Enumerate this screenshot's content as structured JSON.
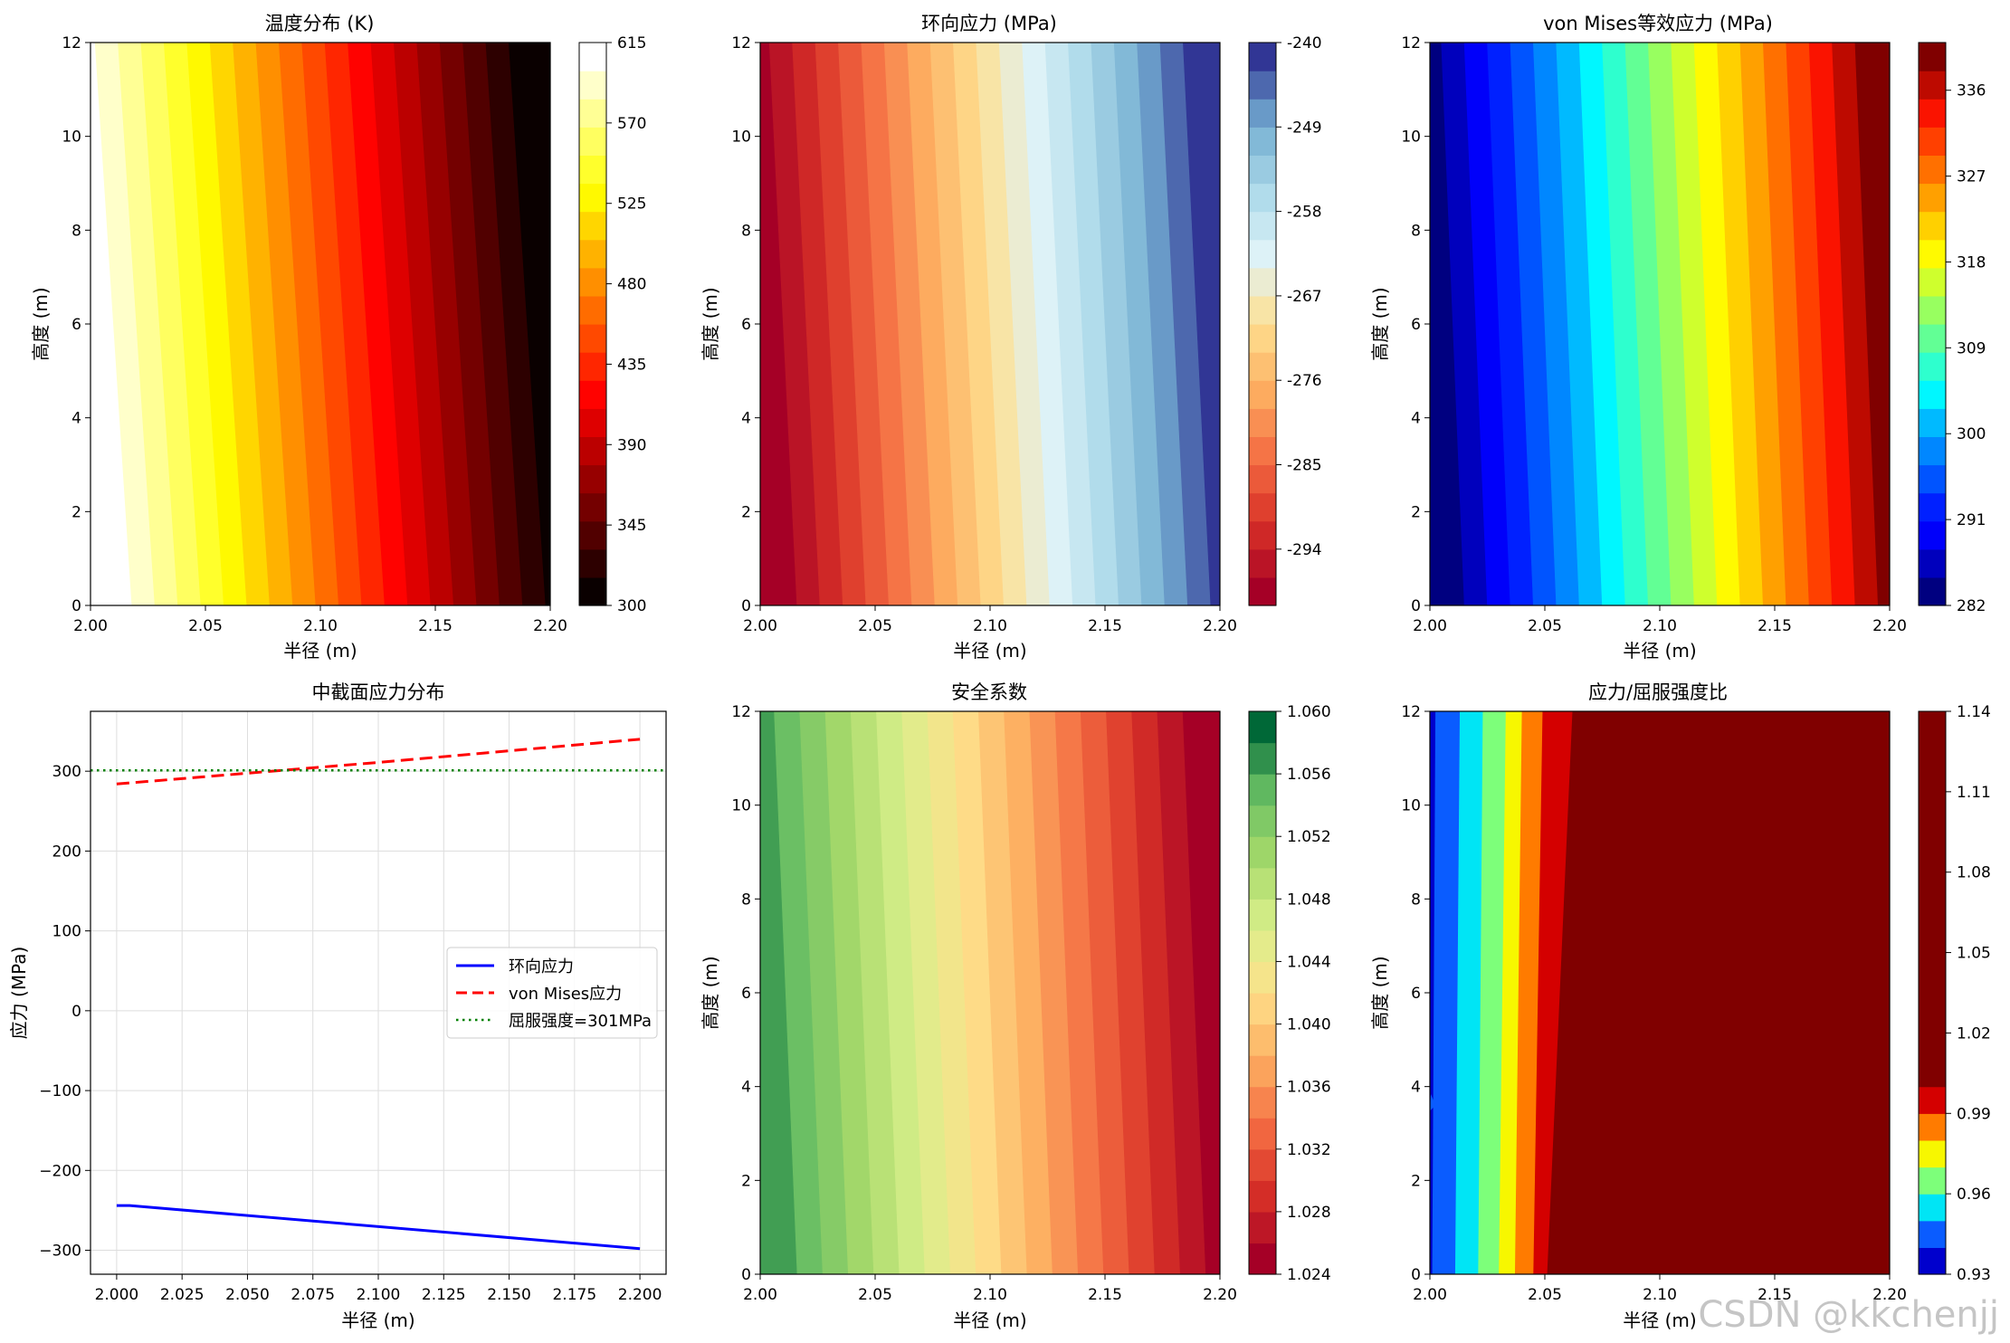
{
  "watermark": "CSDN @kkchenjj",
  "chart_data": [
    {
      "type": "contour",
      "title": "温度分布 (K)",
      "xlabel": "半径 (m)",
      "ylabel": "高度 (m)",
      "xlim": [
        2.0,
        2.2
      ],
      "ylim": [
        0,
        12
      ],
      "xticks": [
        "2.00",
        "2.05",
        "2.10",
        "2.15",
        "2.20"
      ],
      "yticks": [
        "0",
        "2",
        "4",
        "6",
        "8",
        "10",
        "12"
      ],
      "colormap": "hot",
      "levels": 20,
      "range": [
        300,
        615
      ],
      "direction": "decreasing with radius",
      "colorbar_ticks": [
        "300",
        "345",
        "390",
        "435",
        "480",
        "525",
        "570",
        "615"
      ]
    },
    {
      "type": "contour",
      "title": "环向应力 (MPa)",
      "xlabel": "半径 (m)",
      "ylabel": "高度 (m)",
      "xlim": [
        2.0,
        2.2
      ],
      "ylim": [
        0,
        12
      ],
      "xticks": [
        "2.00",
        "2.05",
        "2.10",
        "2.15",
        "2.20"
      ],
      "yticks": [
        "0",
        "2",
        "4",
        "6",
        "8",
        "10",
        "12"
      ],
      "colormap": "RdYlBu",
      "levels": 20,
      "range": [
        -240,
        -300
      ],
      "direction": "decreasing with radius",
      "colorbar_ticks": [
        "-240",
        "-249",
        "-258",
        "-267",
        "-276",
        "-285",
        "-294"
      ]
    },
    {
      "type": "contour",
      "title": "von Mises等效应力 (MPa)",
      "xlabel": "半径 (m)",
      "ylabel": "高度 (m)",
      "xlim": [
        2.0,
        2.2
      ],
      "ylim": [
        0,
        12
      ],
      "xticks": [
        "2.00",
        "2.05",
        "2.10",
        "2.15",
        "2.20"
      ],
      "yticks": [
        "0",
        "2",
        "4",
        "6",
        "8",
        "10",
        "12"
      ],
      "colormap": "jet",
      "levels": 20,
      "range": [
        282,
        341
      ],
      "direction": "increasing with radius",
      "colorbar_ticks": [
        "282",
        "291",
        "300",
        "309",
        "318",
        "327",
        "336"
      ]
    },
    {
      "type": "line",
      "title": "中截面应力分布",
      "xlabel": "半径 (m)",
      "ylabel": "应力 (MPa)",
      "xlim": [
        1.99,
        2.21
      ],
      "ylim": [
        -330,
        375
      ],
      "xticks": [
        "2.000",
        "2.025",
        "2.050",
        "2.075",
        "2.100",
        "2.125",
        "2.150",
        "2.175",
        "2.200"
      ],
      "yticks": [
        "−300",
        "−200",
        "−100",
        "0",
        "100",
        "200",
        "300"
      ],
      "grid": true,
      "legend_position": "center-right",
      "series": [
        {
          "name": "环向应力",
          "color": "#0000ff",
          "style": "solid",
          "x": [
            2.0,
            2.005,
            2.2
          ],
          "y": [
            -244,
            -244,
            -298
          ]
        },
        {
          "name": "von Mises应力",
          "color": "#ff0000",
          "style": "dashed",
          "x": [
            2.0,
            2.1,
            2.2
          ],
          "y": [
            284,
            311,
            340
          ]
        },
        {
          "name": "屈服强度=301MPa",
          "color": "#008000",
          "style": "dotted",
          "x": [
            1.99,
            2.21
          ],
          "y": [
            301,
            301
          ]
        }
      ]
    },
    {
      "type": "contour",
      "title": "安全系数",
      "xlabel": "半径 (m)",
      "ylabel": "高度 (m)",
      "xlim": [
        2.0,
        2.2
      ],
      "ylim": [
        0,
        12
      ],
      "xticks": [
        "2.00",
        "2.05",
        "2.10",
        "2.15",
        "2.20"
      ],
      "yticks": [
        "0",
        "2",
        "4",
        "6",
        "8",
        "10",
        "12"
      ],
      "colormap": "RdYlGn",
      "levels": 18,
      "range": [
        1.06,
        1.024
      ],
      "direction": "decreasing with radius",
      "colorbar_ticks": [
        "1.024",
        "1.028",
        "1.032",
        "1.036",
        "1.040",
        "1.044",
        "1.048",
        "1.052",
        "1.056",
        "1.060"
      ]
    },
    {
      "type": "contour",
      "title": "应力/屈服强度比",
      "xlabel": "半径 (m)",
      "ylabel": "高度 (m)",
      "xlim": [
        2.0,
        2.2
      ],
      "ylim": [
        0,
        12
      ],
      "xticks": [
        "2.00",
        "2.05",
        "2.10",
        "2.15",
        "2.20"
      ],
      "yticks": [
        "0",
        "2",
        "4",
        "6",
        "8",
        "10",
        "12"
      ],
      "colormap": "jet",
      "range": [
        0.93,
        1.14
      ],
      "boundaries": [
        0.93,
        0.94,
        0.95,
        0.96,
        0.97,
        0.98,
        0.99,
        1.0,
        1.14
      ],
      "colorbar_ticks": [
        "0.93",
        "0.96",
        "0.99",
        "1.02",
        "1.05",
        "1.08",
        "1.11",
        "1.14"
      ]
    }
  ]
}
